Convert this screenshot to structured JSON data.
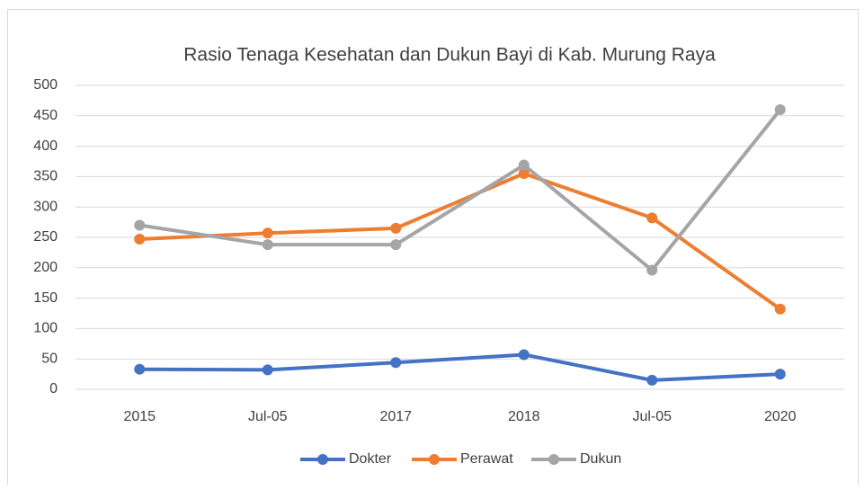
{
  "chart_data": {
    "type": "line",
    "title": "Rasio Tenaga Kesehatan dan Dukun Bayi di Kab. Murung Raya",
    "categories": [
      "2015",
      "Jul-05",
      "2017",
      "2018",
      "Jul-05",
      "2020"
    ],
    "series": [
      {
        "name": "Dokter",
        "color": "#4472c4",
        "values": [
          33,
          32,
          44,
          57,
          15,
          25
        ]
      },
      {
        "name": "Perawat",
        "color": "#ed7d31",
        "values": [
          247,
          257,
          265,
          355,
          282,
          132
        ]
      },
      {
        "name": "Dukun",
        "color": "#a5a5a5",
        "values": [
          270,
          238,
          238,
          369,
          196,
          460
        ]
      }
    ],
    "ylim": [
      0,
      500
    ],
    "yticks": [
      0,
      50,
      100,
      150,
      200,
      250,
      300,
      350,
      400,
      450,
      500
    ],
    "grid": true,
    "legend": "bottom"
  }
}
